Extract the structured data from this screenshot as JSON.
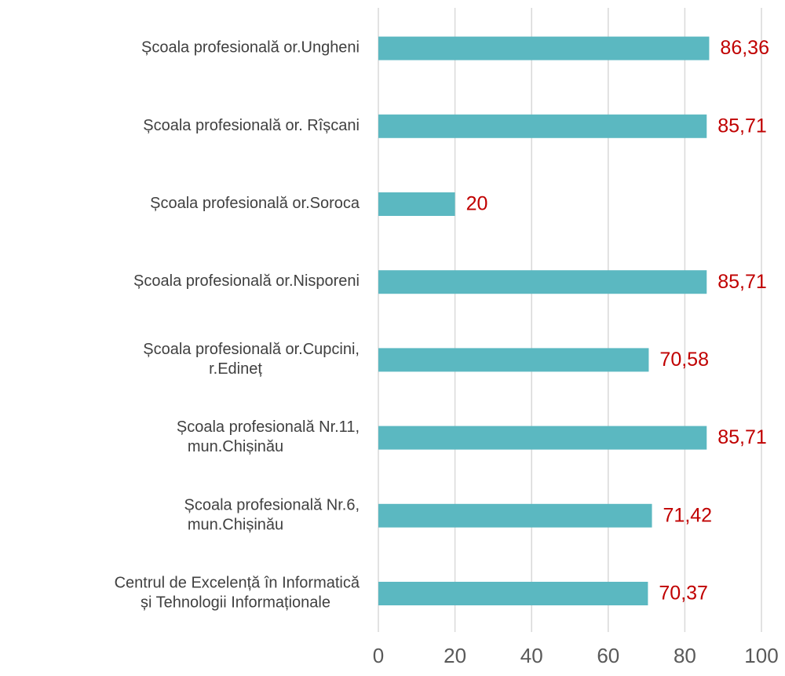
{
  "chart_data": {
    "type": "bar",
    "orientation": "horizontal",
    "categories": [
      "Școala profesională or.Ungheni",
      "Școala profesională or. Rîșcani",
      "Școala profesională or.Soroca",
      "Școala profesională or.Nisporeni",
      "Școala profesională or.Cupcini,\nr.Edineț",
      "Școala profesională Nr.11,\nmun.Chișinău",
      "Școala profesională Nr.6,\nmun.Chișinău",
      "Centrul de Excelență în Informatică\nși Tehnologii Informaționale"
    ],
    "values": [
      86.36,
      85.71,
      20,
      85.71,
      70.58,
      85.71,
      71.42,
      70.37
    ],
    "value_labels": [
      "86,36",
      "85,71",
      "20",
      "85,71",
      "70,58",
      "85,71",
      "71,42",
      "70,37"
    ],
    "color": "#5bb8c1",
    "xlim": [
      0,
      100
    ],
    "xticks": [
      0,
      20,
      40,
      60,
      80,
      100
    ],
    "grid": true
  }
}
